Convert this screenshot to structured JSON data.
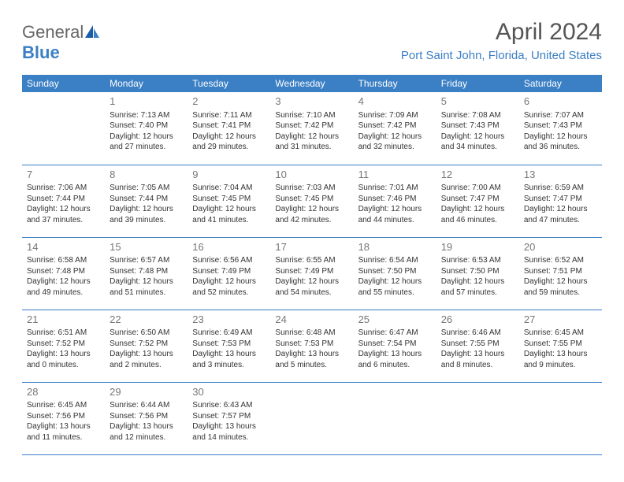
{
  "logo": {
    "text_general": "General",
    "text_blue": "Blue"
  },
  "header": {
    "title": "April 2024",
    "location": "Port Saint John, Florida, United States"
  },
  "colors": {
    "accent": "#3b7fc4",
    "header_text": "#ffffff",
    "body_text": "#333333",
    "day_num": "#777777"
  },
  "weekdays": [
    "Sunday",
    "Monday",
    "Tuesday",
    "Wednesday",
    "Thursday",
    "Friday",
    "Saturday"
  ],
  "weeks": [
    [
      null,
      {
        "n": "1",
        "sr": "Sunrise: 7:13 AM",
        "ss": "Sunset: 7:40 PM",
        "d1": "Daylight: 12 hours",
        "d2": "and 27 minutes."
      },
      {
        "n": "2",
        "sr": "Sunrise: 7:11 AM",
        "ss": "Sunset: 7:41 PM",
        "d1": "Daylight: 12 hours",
        "d2": "and 29 minutes."
      },
      {
        "n": "3",
        "sr": "Sunrise: 7:10 AM",
        "ss": "Sunset: 7:42 PM",
        "d1": "Daylight: 12 hours",
        "d2": "and 31 minutes."
      },
      {
        "n": "4",
        "sr": "Sunrise: 7:09 AM",
        "ss": "Sunset: 7:42 PM",
        "d1": "Daylight: 12 hours",
        "d2": "and 32 minutes."
      },
      {
        "n": "5",
        "sr": "Sunrise: 7:08 AM",
        "ss": "Sunset: 7:43 PM",
        "d1": "Daylight: 12 hours",
        "d2": "and 34 minutes."
      },
      {
        "n": "6",
        "sr": "Sunrise: 7:07 AM",
        "ss": "Sunset: 7:43 PM",
        "d1": "Daylight: 12 hours",
        "d2": "and 36 minutes."
      }
    ],
    [
      {
        "n": "7",
        "sr": "Sunrise: 7:06 AM",
        "ss": "Sunset: 7:44 PM",
        "d1": "Daylight: 12 hours",
        "d2": "and 37 minutes."
      },
      {
        "n": "8",
        "sr": "Sunrise: 7:05 AM",
        "ss": "Sunset: 7:44 PM",
        "d1": "Daylight: 12 hours",
        "d2": "and 39 minutes."
      },
      {
        "n": "9",
        "sr": "Sunrise: 7:04 AM",
        "ss": "Sunset: 7:45 PM",
        "d1": "Daylight: 12 hours",
        "d2": "and 41 minutes."
      },
      {
        "n": "10",
        "sr": "Sunrise: 7:03 AM",
        "ss": "Sunset: 7:45 PM",
        "d1": "Daylight: 12 hours",
        "d2": "and 42 minutes."
      },
      {
        "n": "11",
        "sr": "Sunrise: 7:01 AM",
        "ss": "Sunset: 7:46 PM",
        "d1": "Daylight: 12 hours",
        "d2": "and 44 minutes."
      },
      {
        "n": "12",
        "sr": "Sunrise: 7:00 AM",
        "ss": "Sunset: 7:47 PM",
        "d1": "Daylight: 12 hours",
        "d2": "and 46 minutes."
      },
      {
        "n": "13",
        "sr": "Sunrise: 6:59 AM",
        "ss": "Sunset: 7:47 PM",
        "d1": "Daylight: 12 hours",
        "d2": "and 47 minutes."
      }
    ],
    [
      {
        "n": "14",
        "sr": "Sunrise: 6:58 AM",
        "ss": "Sunset: 7:48 PM",
        "d1": "Daylight: 12 hours",
        "d2": "and 49 minutes."
      },
      {
        "n": "15",
        "sr": "Sunrise: 6:57 AM",
        "ss": "Sunset: 7:48 PM",
        "d1": "Daylight: 12 hours",
        "d2": "and 51 minutes."
      },
      {
        "n": "16",
        "sr": "Sunrise: 6:56 AM",
        "ss": "Sunset: 7:49 PM",
        "d1": "Daylight: 12 hours",
        "d2": "and 52 minutes."
      },
      {
        "n": "17",
        "sr": "Sunrise: 6:55 AM",
        "ss": "Sunset: 7:49 PM",
        "d1": "Daylight: 12 hours",
        "d2": "and 54 minutes."
      },
      {
        "n": "18",
        "sr": "Sunrise: 6:54 AM",
        "ss": "Sunset: 7:50 PM",
        "d1": "Daylight: 12 hours",
        "d2": "and 55 minutes."
      },
      {
        "n": "19",
        "sr": "Sunrise: 6:53 AM",
        "ss": "Sunset: 7:50 PM",
        "d1": "Daylight: 12 hours",
        "d2": "and 57 minutes."
      },
      {
        "n": "20",
        "sr": "Sunrise: 6:52 AM",
        "ss": "Sunset: 7:51 PM",
        "d1": "Daylight: 12 hours",
        "d2": "and 59 minutes."
      }
    ],
    [
      {
        "n": "21",
        "sr": "Sunrise: 6:51 AM",
        "ss": "Sunset: 7:52 PM",
        "d1": "Daylight: 13 hours",
        "d2": "and 0 minutes."
      },
      {
        "n": "22",
        "sr": "Sunrise: 6:50 AM",
        "ss": "Sunset: 7:52 PM",
        "d1": "Daylight: 13 hours",
        "d2": "and 2 minutes."
      },
      {
        "n": "23",
        "sr": "Sunrise: 6:49 AM",
        "ss": "Sunset: 7:53 PM",
        "d1": "Daylight: 13 hours",
        "d2": "and 3 minutes."
      },
      {
        "n": "24",
        "sr": "Sunrise: 6:48 AM",
        "ss": "Sunset: 7:53 PM",
        "d1": "Daylight: 13 hours",
        "d2": "and 5 minutes."
      },
      {
        "n": "25",
        "sr": "Sunrise: 6:47 AM",
        "ss": "Sunset: 7:54 PM",
        "d1": "Daylight: 13 hours",
        "d2": "and 6 minutes."
      },
      {
        "n": "26",
        "sr": "Sunrise: 6:46 AM",
        "ss": "Sunset: 7:55 PM",
        "d1": "Daylight: 13 hours",
        "d2": "and 8 minutes."
      },
      {
        "n": "27",
        "sr": "Sunrise: 6:45 AM",
        "ss": "Sunset: 7:55 PM",
        "d1": "Daylight: 13 hours",
        "d2": "and 9 minutes."
      }
    ],
    [
      {
        "n": "28",
        "sr": "Sunrise: 6:45 AM",
        "ss": "Sunset: 7:56 PM",
        "d1": "Daylight: 13 hours",
        "d2": "and 11 minutes."
      },
      {
        "n": "29",
        "sr": "Sunrise: 6:44 AM",
        "ss": "Sunset: 7:56 PM",
        "d1": "Daylight: 13 hours",
        "d2": "and 12 minutes."
      },
      {
        "n": "30",
        "sr": "Sunrise: 6:43 AM",
        "ss": "Sunset: 7:57 PM",
        "d1": "Daylight: 13 hours",
        "d2": "and 14 minutes."
      },
      null,
      null,
      null,
      null
    ]
  ]
}
